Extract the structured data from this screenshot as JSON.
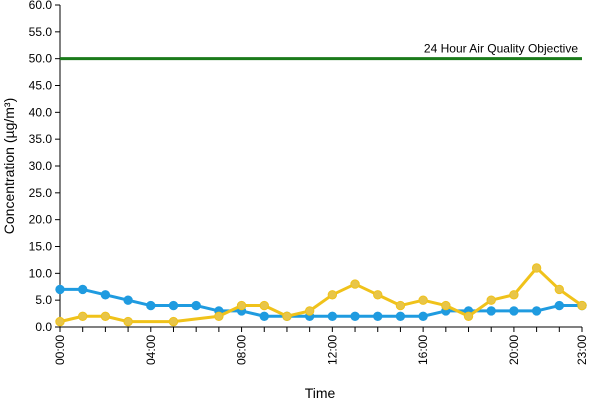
{
  "chart_data": {
    "type": "line",
    "title": "",
    "xlabel": "Time",
    "ylabel": "Concentration (µg/m³)",
    "x": [
      "00:00",
      "01:00",
      "02:00",
      "03:00",
      "04:00",
      "05:00",
      "06:00",
      "07:00",
      "08:00",
      "09:00",
      "10:00",
      "11:00",
      "12:00",
      "13:00",
      "14:00",
      "15:00",
      "16:00",
      "17:00",
      "18:00",
      "19:00",
      "20:00",
      "21:00",
      "22:00",
      "23:00"
    ],
    "x_tick_labels": [
      "00:00",
      "04:00",
      "08:00",
      "12:00",
      "16:00",
      "20:00",
      "23:00"
    ],
    "x_tick_positions": [
      0,
      4,
      8,
      12,
      16,
      20,
      23
    ],
    "ylim": [
      0,
      60
    ],
    "y_ticks": [
      "0.0",
      "5.0",
      "10.0",
      "15.0",
      "20.0",
      "25.0",
      "30.0",
      "35.0",
      "40.0",
      "45.0",
      "50.0",
      "55.0",
      "60.0"
    ],
    "grid": false,
    "series": [
      {
        "color": "#1f9be0",
        "values": [
          7,
          7,
          6,
          5,
          4,
          4,
          4,
          3,
          3,
          2,
          2,
          2,
          2,
          2,
          2,
          2,
          2,
          3,
          3,
          3,
          3,
          3,
          4,
          4
        ]
      },
      {
        "color": "#f0c21a",
        "marker_color": "#e8c548",
        "values": [
          1,
          2,
          2,
          1,
          null,
          1,
          null,
          2,
          4,
          4,
          2,
          3,
          6,
          8,
          6,
          4,
          5,
          4,
          2,
          5,
          6,
          11,
          7,
          4
        ]
      }
    ],
    "reference_line": {
      "label": "24 Hour Air Quality Objective",
      "value": 50,
      "color": "#1a7a1a"
    }
  }
}
